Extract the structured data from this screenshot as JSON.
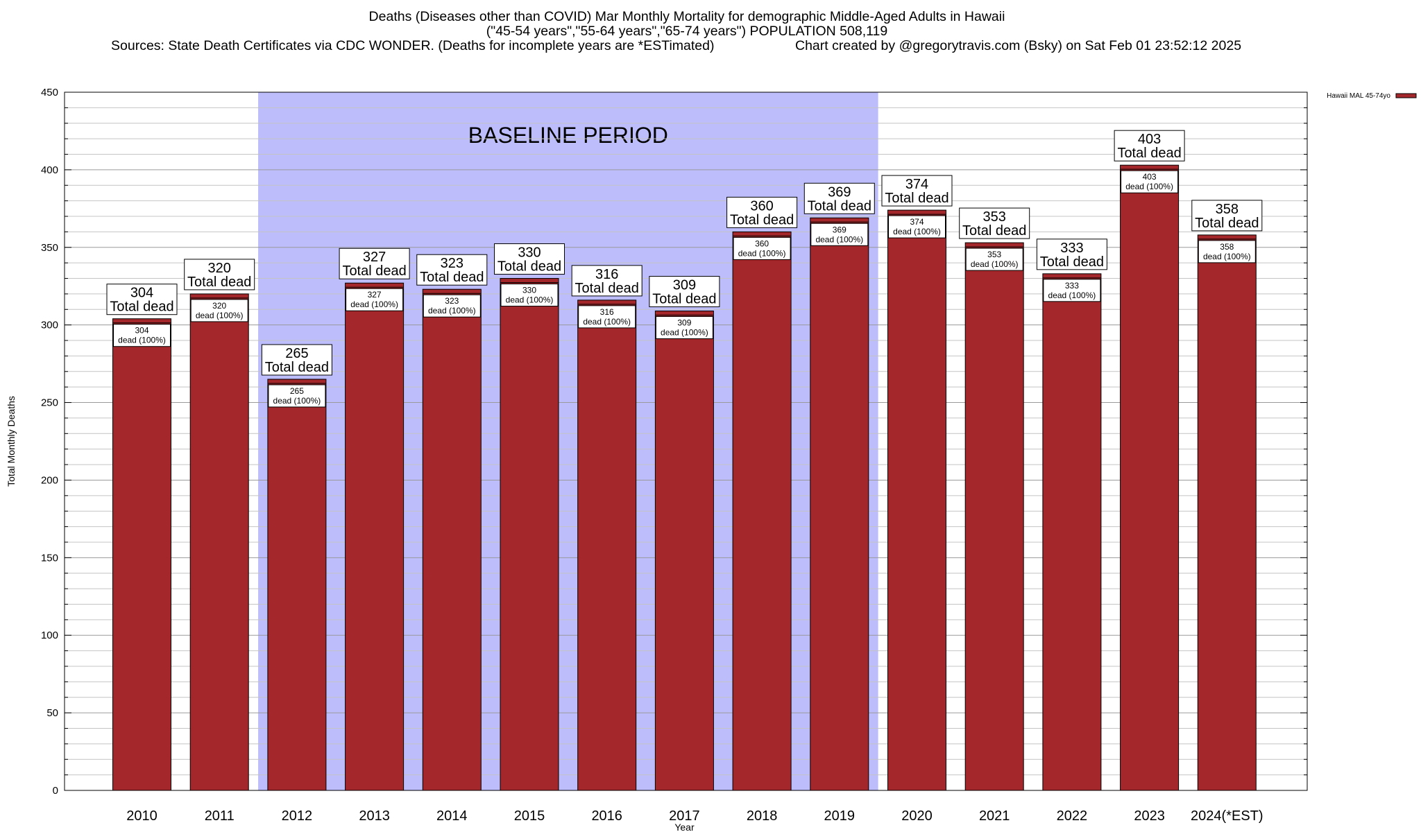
{
  "header": {
    "title_line1": "Deaths (Diseases other than COVID) Mar Monthly Mortality for demographic Middle-Aged Adults in Hawaii",
    "title_line2": "(\"45-54 years\",\"55-64 years\",\"65-74 years\") POPULATION 508,119",
    "sources": "Sources: State Death Certificates via CDC WONDER. (Deaths for incomplete years are *ESTimated)",
    "credit": "Chart created by @gregorytravis.com (Bsky) on Sat Feb 01 23:52:12 2025"
  },
  "chart_data": {
    "type": "bar",
    "xlabel": "Year",
    "ylabel": "Total Monthly Deaths",
    "ylim": [
      0,
      450
    ],
    "yticks": [
      0,
      50,
      100,
      150,
      200,
      250,
      300,
      350,
      400,
      450
    ],
    "grid": true,
    "categories": [
      "2010",
      "2011",
      "2012",
      "2013",
      "2014",
      "2015",
      "2016",
      "2017",
      "2018",
      "2019",
      "2020",
      "2021",
      "2022",
      "2023",
      "2024(*EST)"
    ],
    "series": [
      {
        "name": "Hawaii MAL 45-74yo",
        "color": "#a4282b",
        "values": [
          304,
          320,
          265,
          327,
          323,
          330,
          316,
          309,
          360,
          369,
          374,
          353,
          333,
          403,
          358
        ]
      }
    ],
    "label_total_text": "Total dead",
    "label_inner_text": "dead (100%)",
    "baseline": {
      "label": "BASELINE PERIOD",
      "from": "2012",
      "to": "2019",
      "color": "#bdbdfc"
    },
    "legend": {
      "position": "top-right",
      "entries": [
        "Hawaii MAL 45-74yo"
      ]
    }
  }
}
